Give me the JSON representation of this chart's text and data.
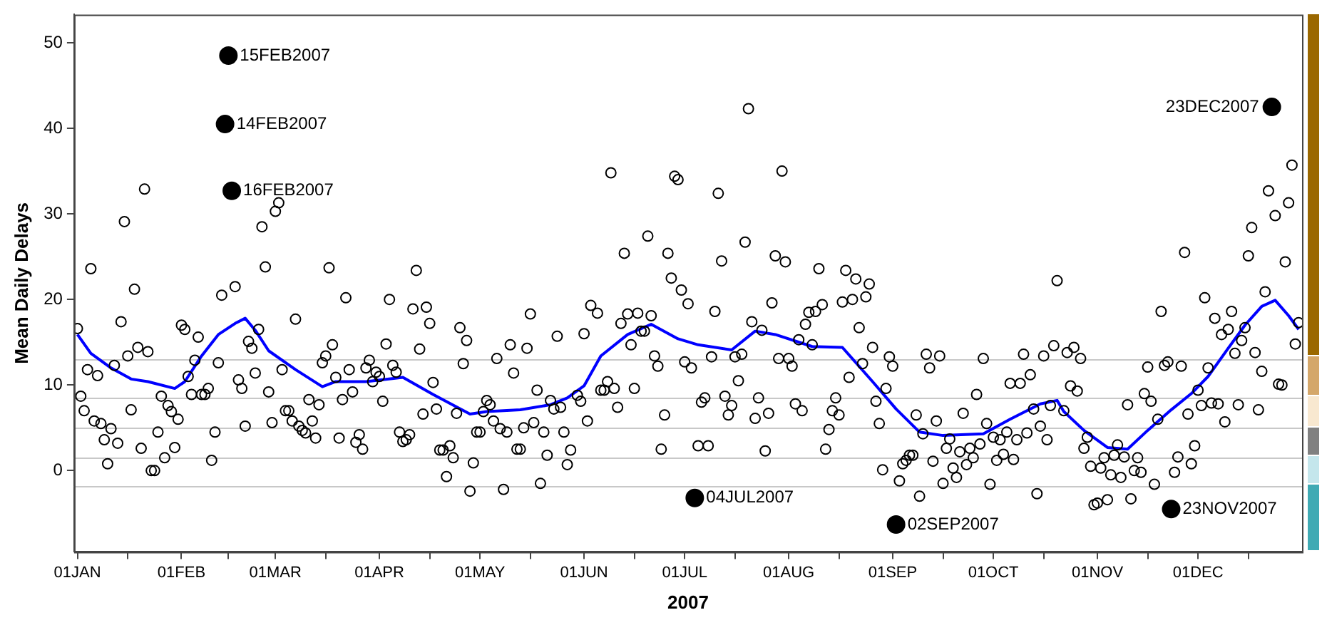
{
  "chart_data": {
    "type": "scatter",
    "xlabel": "2007",
    "ylabel": "Mean Daily Delays",
    "ylim": [
      -9.5,
      53.3
    ],
    "yticks": [
      0,
      10,
      20,
      30,
      40,
      50
    ],
    "xlim": [
      "2006-12-31",
      "2008-01-01"
    ],
    "xticks": [
      {
        "value": "2007-01-01",
        "label": "01JAN"
      },
      {
        "value": "2007-01-16",
        "label": null
      },
      {
        "value": "2007-02-01",
        "label": "01FEB"
      },
      {
        "value": "2007-02-15",
        "label": null
      },
      {
        "value": "2007-03-01",
        "label": "01MAR"
      },
      {
        "value": "2007-03-16",
        "label": null
      },
      {
        "value": "2007-04-01",
        "label": "01APR"
      },
      {
        "value": "2007-04-16",
        "label": null
      },
      {
        "value": "2007-05-01",
        "label": "01MAY"
      },
      {
        "value": "2007-05-16",
        "label": null
      },
      {
        "value": "2007-06-01",
        "label": "01JUN"
      },
      {
        "value": "2007-06-16",
        "label": null
      },
      {
        "value": "2007-07-01",
        "label": "01JUL"
      },
      {
        "value": "2007-07-16",
        "label": null
      },
      {
        "value": "2007-08-01",
        "label": "01AUG"
      },
      {
        "value": "2007-08-16",
        "label": null
      },
      {
        "value": "2007-09-01",
        "label": "01SEP"
      },
      {
        "value": "2007-09-16",
        "label": null
      },
      {
        "value": "2007-10-01",
        "label": "01OCT"
      },
      {
        "value": "2007-10-16",
        "label": null
      },
      {
        "value": "2007-11-01",
        "label": "01NOV"
      },
      {
        "value": "2007-11-16",
        "label": null
      },
      {
        "value": "2007-12-01",
        "label": "01DEC"
      },
      {
        "value": "2007-12-16",
        "label": null
      }
    ],
    "grid": false,
    "legend": false,
    "ref_lines": [
      {
        "axis": "y",
        "value": 13,
        "color": "#c8c8c8"
      },
      {
        "axis": "y",
        "value": 8.5,
        "color": "#c8c8c8"
      },
      {
        "axis": "y",
        "value": 5,
        "color": "#c8c8c8"
      },
      {
        "axis": "y",
        "value": 1.5,
        "color": "#c8c8c8"
      },
      {
        "axis": "y",
        "value": -1.8,
        "color": "#c8c8c8"
      }
    ],
    "annotations": [
      {
        "text": "15FEB2007",
        "x": "2007-02-15",
        "y": 48.5
      },
      {
        "text": "14FEB2007",
        "x": "2007-02-14",
        "y": 40.5
      },
      {
        "text": "16FEB2007",
        "x": "2007-02-16",
        "y": 32.7
      },
      {
        "text": "04JUL2007",
        "x": "2007-07-04",
        "y": -3.2
      },
      {
        "text": "02SEP2007",
        "x": "2007-09-02",
        "y": -6.3
      },
      {
        "text": "23NOV2007",
        "x": "2007-11-23",
        "y": -4.5
      },
      {
        "text": "23DEC2007",
        "x": "2007-12-23",
        "y": 42.5
      }
    ],
    "series": [
      {
        "type": "scatter",
        "marker": "circle",
        "color": "#000000",
        "x": [
          "2007-01-01",
          "2007-01-02",
          "2007-01-03",
          "2007-01-04",
          "2007-01-05",
          "2007-01-06",
          "2007-01-07",
          "2007-01-08",
          "2007-01-09",
          "2007-01-10",
          "2007-01-11",
          "2007-01-12",
          "2007-01-13",
          "2007-01-14",
          "2007-01-15",
          "2007-01-16",
          "2007-01-17",
          "2007-01-18",
          "2007-01-19",
          "2007-01-20",
          "2007-01-21",
          "2007-01-22",
          "2007-01-23",
          "2007-01-24",
          "2007-01-25",
          "2007-01-26",
          "2007-01-27",
          "2007-01-28",
          "2007-01-29",
          "2007-01-30",
          "2007-01-31",
          "2007-02-01",
          "2007-02-02",
          "2007-02-03",
          "2007-02-04",
          "2007-02-05",
          "2007-02-06",
          "2007-02-07",
          "2007-02-08",
          "2007-02-09",
          "2007-02-10",
          "2007-02-11",
          "2007-02-12",
          "2007-02-13",
          "2007-02-17",
          "2007-02-18",
          "2007-02-19",
          "2007-02-20",
          "2007-02-21",
          "2007-02-22",
          "2007-02-23",
          "2007-02-24",
          "2007-02-25",
          "2007-02-26",
          "2007-02-27",
          "2007-02-28",
          "2007-03-01",
          "2007-03-02",
          "2007-03-03",
          "2007-03-04",
          "2007-03-05",
          "2007-03-06",
          "2007-03-07",
          "2007-03-08",
          "2007-03-09",
          "2007-03-10",
          "2007-03-11",
          "2007-03-12",
          "2007-03-13",
          "2007-03-14",
          "2007-03-15",
          "2007-03-16",
          "2007-03-17",
          "2007-03-18",
          "2007-03-19",
          "2007-03-20",
          "2007-03-21",
          "2007-03-22",
          "2007-03-23",
          "2007-03-24",
          "2007-03-25",
          "2007-03-26",
          "2007-03-27",
          "2007-03-28",
          "2007-03-29",
          "2007-03-30",
          "2007-03-31",
          "2007-04-01",
          "2007-04-02",
          "2007-04-03",
          "2007-04-04",
          "2007-04-05",
          "2007-04-06",
          "2007-04-07",
          "2007-04-08",
          "2007-04-09",
          "2007-04-10",
          "2007-04-11",
          "2007-04-12",
          "2007-04-13",
          "2007-04-14",
          "2007-04-15",
          "2007-04-16",
          "2007-04-17",
          "2007-04-18",
          "2007-04-19",
          "2007-04-20",
          "2007-04-21",
          "2007-04-22",
          "2007-04-23",
          "2007-04-24",
          "2007-04-25",
          "2007-04-26",
          "2007-04-27",
          "2007-04-28",
          "2007-04-29",
          "2007-04-30",
          "2007-05-01",
          "2007-05-02",
          "2007-05-03",
          "2007-05-04",
          "2007-05-05",
          "2007-05-06",
          "2007-05-07",
          "2007-05-08",
          "2007-05-09",
          "2007-05-10",
          "2007-05-11",
          "2007-05-12",
          "2007-05-13",
          "2007-05-14",
          "2007-05-15",
          "2007-05-16",
          "2007-05-17",
          "2007-05-18",
          "2007-05-19",
          "2007-05-20",
          "2007-05-21",
          "2007-05-22",
          "2007-05-23",
          "2007-05-24",
          "2007-05-25",
          "2007-05-26",
          "2007-05-27",
          "2007-05-28",
          "2007-05-30",
          "2007-05-31",
          "2007-06-01",
          "2007-06-02",
          "2007-06-03",
          "2007-06-05",
          "2007-06-06",
          "2007-06-07",
          "2007-06-08",
          "2007-06-09",
          "2007-06-10",
          "2007-06-11",
          "2007-06-12",
          "2007-06-13",
          "2007-06-14",
          "2007-06-15",
          "2007-06-16",
          "2007-06-17",
          "2007-06-18",
          "2007-06-19",
          "2007-06-20",
          "2007-06-21",
          "2007-06-22",
          "2007-06-23",
          "2007-06-24",
          "2007-06-25",
          "2007-06-26",
          "2007-06-27",
          "2007-06-28",
          "2007-06-29",
          "2007-06-30",
          "2007-07-01",
          "2007-07-02",
          "2007-07-03",
          "2007-07-05",
          "2007-07-06",
          "2007-07-07",
          "2007-07-08",
          "2007-07-09",
          "2007-07-10",
          "2007-07-11",
          "2007-07-12",
          "2007-07-13",
          "2007-07-14",
          "2007-07-15",
          "2007-07-16",
          "2007-07-17",
          "2007-07-18",
          "2007-07-19",
          "2007-07-20",
          "2007-07-21",
          "2007-07-22",
          "2007-07-23",
          "2007-07-24",
          "2007-07-25",
          "2007-07-26",
          "2007-07-27",
          "2007-07-28",
          "2007-07-29",
          "2007-07-30",
          "2007-07-31",
          "2007-08-01",
          "2007-08-02",
          "2007-08-03",
          "2007-08-04",
          "2007-08-05",
          "2007-08-06",
          "2007-08-07",
          "2007-08-08",
          "2007-08-09",
          "2007-08-10",
          "2007-08-11",
          "2007-08-12",
          "2007-08-13",
          "2007-08-14",
          "2007-08-15",
          "2007-08-16",
          "2007-08-17",
          "2007-08-18",
          "2007-08-19",
          "2007-08-20",
          "2007-08-21",
          "2007-08-22",
          "2007-08-23",
          "2007-08-24",
          "2007-08-25",
          "2007-08-26",
          "2007-08-27",
          "2007-08-28",
          "2007-08-29",
          "2007-08-30",
          "2007-08-31",
          "2007-09-01",
          "2007-09-03",
          "2007-09-04",
          "2007-09-05",
          "2007-09-06",
          "2007-09-07",
          "2007-09-08",
          "2007-09-09",
          "2007-09-10",
          "2007-09-11",
          "2007-09-12",
          "2007-09-13",
          "2007-09-14",
          "2007-09-15",
          "2007-09-16",
          "2007-09-17",
          "2007-09-18",
          "2007-09-19",
          "2007-09-20",
          "2007-09-21",
          "2007-09-22",
          "2007-09-23",
          "2007-09-24",
          "2007-09-25",
          "2007-09-26",
          "2007-09-27",
          "2007-09-28",
          "2007-09-29",
          "2007-09-30",
          "2007-10-01",
          "2007-10-02",
          "2007-10-03",
          "2007-10-04",
          "2007-10-05",
          "2007-10-06",
          "2007-10-07",
          "2007-10-08",
          "2007-10-09",
          "2007-10-10",
          "2007-10-11",
          "2007-10-12",
          "2007-10-13",
          "2007-10-14",
          "2007-10-15",
          "2007-10-16",
          "2007-10-17",
          "2007-10-18",
          "2007-10-19",
          "2007-10-20",
          "2007-10-22",
          "2007-10-23",
          "2007-10-24",
          "2007-10-25",
          "2007-10-26",
          "2007-10-27",
          "2007-10-28",
          "2007-10-29",
          "2007-10-30",
          "2007-10-31",
          "2007-11-01",
          "2007-11-02",
          "2007-11-03",
          "2007-11-04",
          "2007-11-05",
          "2007-11-06",
          "2007-11-07",
          "2007-11-08",
          "2007-11-09",
          "2007-11-10",
          "2007-11-11",
          "2007-11-12",
          "2007-11-13",
          "2007-11-14",
          "2007-11-15",
          "2007-11-16",
          "2007-11-17",
          "2007-11-18",
          "2007-11-19",
          "2007-11-20",
          "2007-11-21",
          "2007-11-22",
          "2007-11-24",
          "2007-11-25",
          "2007-11-26",
          "2007-11-27",
          "2007-11-28",
          "2007-11-29",
          "2007-11-30",
          "2007-12-01",
          "2007-12-02",
          "2007-12-03",
          "2007-12-04",
          "2007-12-05",
          "2007-12-06",
          "2007-12-07",
          "2007-12-08",
          "2007-12-09",
          "2007-12-10",
          "2007-12-11",
          "2007-12-12",
          "2007-12-13",
          "2007-12-14",
          "2007-12-15",
          "2007-12-16",
          "2007-12-17",
          "2007-12-18",
          "2007-12-19",
          "2007-12-20",
          "2007-12-21",
          "2007-12-22",
          "2007-12-24",
          "2007-12-25",
          "2007-12-26",
          "2007-12-27",
          "2007-12-28",
          "2007-12-29",
          "2007-12-30",
          "2007-12-31"
        ],
        "values": [
          16.6,
          8.7,
          7.0,
          11.8,
          23.6,
          5.8,
          11.1,
          5.5,
          3.6,
          0.8,
          4.9,
          12.3,
          3.2,
          17.4,
          29.1,
          13.4,
          7.1,
          21.2,
          14.4,
          2.6,
          32.9,
          13.9,
          0.0,
          0.0,
          4.5,
          8.7,
          1.5,
          7.6,
          6.9,
          2.7,
          6.0,
          17.0,
          16.5,
          11.0,
          8.9,
          12.9,
          15.6,
          8.9,
          8.9,
          9.6,
          1.2,
          4.5,
          12.6,
          20.5,
          21.5,
          10.6,
          9.6,
          5.2,
          15.1,
          14.3,
          11.4,
          16.5,
          28.5,
          23.8,
          9.2,
          5.6,
          30.3,
          31.3,
          11.8,
          7.0,
          7.0,
          5.8,
          17.7,
          5.2,
          4.7,
          4.4,
          8.3,
          5.8,
          3.8,
          7.7,
          12.6,
          13.4,
          23.7,
          14.7,
          10.9,
          3.8,
          8.3,
          20.2,
          11.8,
          9.2,
          3.3,
          4.2,
          2.5,
          12.0,
          12.9,
          10.4,
          11.5,
          11.0,
          8.1,
          14.8,
          20.0,
          12.3,
          11.5,
          4.5,
          3.4,
          3.6,
          4.2,
          18.9,
          23.4,
          14.2,
          6.6,
          19.1,
          17.2,
          10.3,
          7.2,
          2.4,
          2.4,
          -0.7,
          2.9,
          1.5,
          6.7,
          16.7,
          12.5,
          15.2,
          -2.4,
          0.9,
          4.5,
          4.5,
          6.9,
          8.2,
          7.7,
          5.8,
          13.1,
          4.9,
          -2.2,
          4.5,
          14.7,
          11.4,
          2.5,
          2.5,
          5.0,
          14.3,
          18.3,
          5.6,
          9.4,
          -1.5,
          4.5,
          1.8,
          8.2,
          7.2,
          15.7,
          7.4,
          4.5,
          0.7,
          2.4,
          8.8,
          8.1,
          16.0,
          5.8,
          19.3,
          18.4,
          9.4,
          9.4,
          10.4,
          34.8,
          9.6,
          7.4,
          17.2,
          25.4,
          18.3,
          14.7,
          9.6,
          18.4,
          16.3,
          16.3,
          27.4,
          18.1,
          13.4,
          12.2,
          2.5,
          6.5,
          25.4,
          22.5,
          34.4,
          34.0,
          21.1,
          12.7,
          19.5,
          12.0,
          2.9,
          8.0,
          8.5,
          2.9,
          13.3,
          18.6,
          32.4,
          24.5,
          8.7,
          6.5,
          7.6,
          13.3,
          10.5,
          13.6,
          26.7,
          42.3,
          17.4,
          6.1,
          8.5,
          16.4,
          2.3,
          6.7,
          19.6,
          25.1,
          13.1,
          35.0,
          24.4,
          13.1,
          12.2,
          7.8,
          15.3,
          7.0,
          17.1,
          18.5,
          14.7,
          18.6,
          23.6,
          19.4,
          2.5,
          4.8,
          7.0,
          8.5,
          6.5,
          19.7,
          23.4,
          10.9,
          20.0,
          22.4,
          16.7,
          12.5,
          20.3,
          21.8,
          14.4,
          8.1,
          5.5,
          0.1,
          9.6,
          13.3,
          12.2,
          -1.2,
          0.8,
          1.2,
          1.8,
          1.8,
          6.5,
          -3.0,
          4.3,
          13.6,
          12.0,
          1.1,
          5.8,
          13.4,
          -1.5,
          2.6,
          3.7,
          0.3,
          -0.8,
          2.2,
          6.7,
          0.7,
          2.6,
          1.5,
          8.9,
          3.1,
          13.1,
          5.5,
          -1.6,
          3.9,
          1.2,
          3.6,
          1.9,
          4.5,
          10.2,
          1.3,
          3.6,
          10.2,
          13.6,
          4.4,
          11.2,
          7.2,
          -2.7,
          5.2,
          13.4,
          3.6,
          7.6,
          14.6,
          22.2,
          7.0,
          13.8,
          9.9,
          14.4,
          9.3,
          13.1,
          2.6,
          3.9,
          0.5,
          -4.0,
          -3.8,
          0.3,
          1.5,
          -3.4,
          -0.5,
          1.8,
          3.0,
          -0.8,
          1.6,
          7.7,
          -3.3,
          0.0,
          1.5,
          -0.2,
          9.0,
          12.1,
          8.1,
          -1.6,
          6.0,
          18.6,
          12.3,
          12.7,
          -0.2,
          1.6,
          12.2,
          25.5,
          6.6,
          0.8,
          2.9,
          9.4,
          7.6,
          20.2,
          12.0,
          7.9,
          17.8,
          7.8,
          15.9,
          5.7,
          16.5,
          18.6,
          13.7,
          7.7,
          15.2,
          16.7,
          25.1,
          28.4,
          13.8,
          7.1,
          11.6,
          20.9,
          32.7,
          29.8,
          10.1,
          10.0,
          24.4,
          31.3,
          35.7,
          14.8,
          17.3
        ]
      },
      {
        "type": "scatter",
        "marker": "circle",
        "color": "#000000",
        "x": [
          "2007-02-14",
          "2007-02-15",
          "2007-02-16",
          "2007-07-04",
          "2007-09-02",
          "2007-11-23",
          "2007-12-23"
        ],
        "values": [
          40.5,
          48.5,
          32.7,
          -3.2,
          -6.3,
          -4.5,
          42.5
        ]
      },
      {
        "type": "line",
        "marker": "none",
        "line_style": "solid",
        "color": "#0000ff",
        "x": [
          "2007-01-01",
          "2007-01-05",
          "2007-01-11",
          "2007-01-17",
          "2007-01-22",
          "2007-01-30",
          "2007-02-02",
          "2007-02-07",
          "2007-02-12",
          "2007-02-17",
          "2007-02-20",
          "2007-02-23",
          "2007-02-27",
          "2007-03-07",
          "2007-03-15",
          "2007-03-19",
          "2007-03-28",
          "2007-04-08",
          "2007-04-17",
          "2007-04-28",
          "2007-05-03",
          "2007-05-13",
          "2007-05-22",
          "2007-05-27",
          "2007-06-01",
          "2007-06-06",
          "2007-06-14",
          "2007-06-21",
          "2007-06-29",
          "2007-07-05",
          "2007-07-15",
          "2007-07-22",
          "2007-07-28",
          "2007-08-08",
          "2007-08-17",
          "2007-08-26",
          "2007-09-02",
          "2007-09-09",
          "2007-09-16",
          "2007-09-28",
          "2007-10-06",
          "2007-10-15",
          "2007-10-20",
          "2007-10-22",
          "2007-10-28",
          "2007-11-04",
          "2007-11-10",
          "2007-11-16",
          "2007-11-23",
          "2007-11-29",
          "2007-12-04",
          "2007-12-10",
          "2007-12-15",
          "2007-12-20",
          "2007-12-24",
          "2007-12-28",
          "2007-12-31"
        ],
        "values": [
          15.9,
          13.7,
          12.0,
          10.7,
          10.4,
          9.6,
          10.4,
          13.4,
          15.9,
          17.2,
          17.8,
          16.4,
          14.0,
          11.8,
          9.8,
          10.4,
          10.4,
          10.9,
          8.9,
          6.6,
          6.9,
          7.1,
          7.7,
          8.5,
          9.9,
          13.4,
          15.9,
          17.1,
          15.4,
          14.7,
          14.1,
          16.3,
          15.9,
          14.5,
          14.4,
          10.4,
          7.2,
          4.5,
          4.1,
          4.3,
          6.0,
          7.8,
          8.2,
          6.9,
          4.7,
          2.7,
          2.5,
          4.7,
          7.1,
          9.0,
          11.0,
          14.3,
          17.0,
          19.2,
          19.9,
          18.1,
          16.5
        ]
      }
    ]
  }
}
